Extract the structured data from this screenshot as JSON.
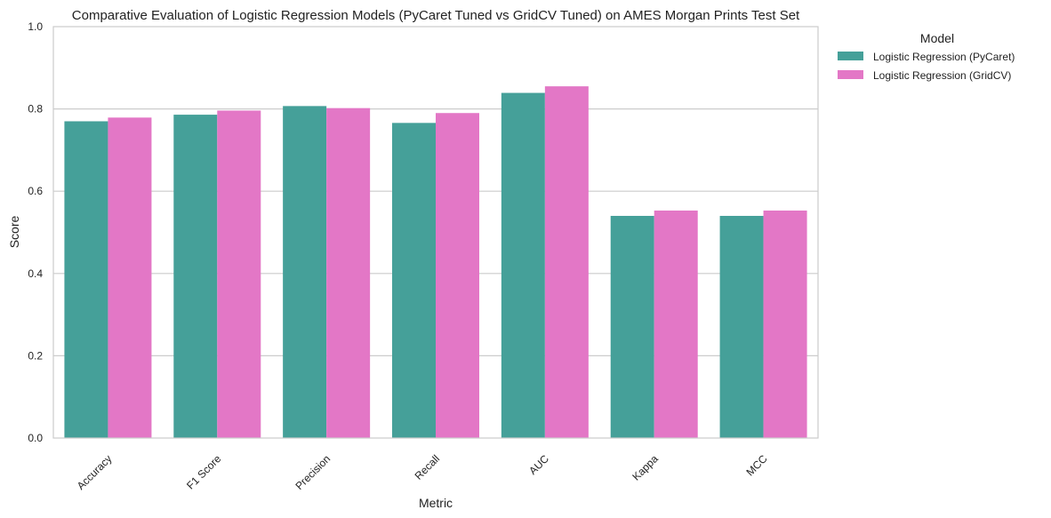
{
  "chart_data": {
    "type": "bar",
    "title": "Comparative Evaluation of Logistic Regression Models (PyCaret Tuned vs GridCV Tuned) on AMES Morgan Prints Test Set",
    "xlabel": "Metric",
    "ylabel": "Score",
    "ylim": [
      0,
      1.0
    ],
    "yticks": [
      "0.0",
      "0.2",
      "0.4",
      "0.6",
      "0.8",
      "1.0"
    ],
    "categories": [
      "Accuracy",
      "F1 Score",
      "Precision",
      "Recall",
      "AUC",
      "Kappa",
      "MCC"
    ],
    "grid": "horizontal",
    "legend": {
      "title": "Model",
      "placement": "outside-top-right"
    },
    "series": [
      {
        "name": "Logistic Regression (PyCaret)",
        "color": "#45a099",
        "values": [
          0.77,
          0.786,
          0.807,
          0.766,
          0.839,
          0.54,
          0.54
        ]
      },
      {
        "name": "Logistic Regression (GridCV)",
        "color": "#e377c6",
        "values": [
          0.779,
          0.796,
          0.802,
          0.79,
          0.855,
          0.553,
          0.553
        ]
      }
    ]
  }
}
